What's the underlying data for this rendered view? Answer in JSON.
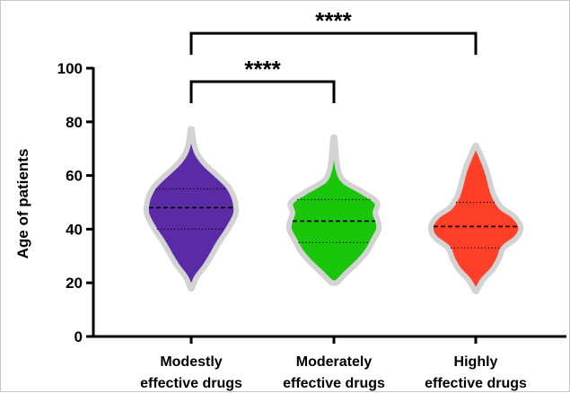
{
  "chart_data": {
    "type": "violin",
    "ylabel": "Age of patients",
    "ylim": [
      0,
      100
    ],
    "yticks": [
      0,
      20,
      40,
      60,
      80,
      100
    ],
    "categories": [
      [
        "Modestly",
        "effective drugs"
      ],
      [
        "Moderately",
        "effective drugs"
      ],
      [
        "Highly",
        "effective drugs"
      ]
    ],
    "series": [
      {
        "color": "#5b2aa6",
        "min": 18,
        "max": 77,
        "median": 48,
        "q1": 40,
        "q3": 55,
        "profile": [
          [
            18,
            0.02
          ],
          [
            22,
            0.12
          ],
          [
            26,
            0.3
          ],
          [
            30,
            0.45
          ],
          [
            35,
            0.62
          ],
          [
            40,
            0.82
          ],
          [
            45,
            0.98
          ],
          [
            48,
            1.0
          ],
          [
            52,
            0.95
          ],
          [
            56,
            0.82
          ],
          [
            60,
            0.58
          ],
          [
            64,
            0.32
          ],
          [
            68,
            0.14
          ],
          [
            72,
            0.06
          ],
          [
            77,
            0.02
          ]
        ]
      },
      {
        "color": "#19c60a",
        "min": 20,
        "max": 74,
        "median": 43,
        "q1": 35,
        "q3": 51,
        "profile": [
          [
            20,
            0.06
          ],
          [
            24,
            0.3
          ],
          [
            28,
            0.55
          ],
          [
            32,
            0.75
          ],
          [
            36,
            0.88
          ],
          [
            40,
            1.0
          ],
          [
            43,
            0.98
          ],
          [
            46,
            0.92
          ],
          [
            50,
            0.96
          ],
          [
            54,
            0.62
          ],
          [
            58,
            0.22
          ],
          [
            62,
            0.1
          ],
          [
            66,
            0.06
          ],
          [
            70,
            0.04
          ],
          [
            74,
            0.02
          ]
        ]
      },
      {
        "color": "#ff3f28",
        "min": 17,
        "max": 71,
        "median": 41,
        "q1": 33,
        "q3": 50,
        "profile": [
          [
            17,
            0.02
          ],
          [
            21,
            0.16
          ],
          [
            25,
            0.38
          ],
          [
            29,
            0.52
          ],
          [
            33,
            0.62
          ],
          [
            37,
            0.92
          ],
          [
            41,
            1.0
          ],
          [
            45,
            0.84
          ],
          [
            48,
            0.58
          ],
          [
            52,
            0.42
          ],
          [
            56,
            0.34
          ],
          [
            60,
            0.28
          ],
          [
            64,
            0.2
          ],
          [
            68,
            0.1
          ],
          [
            71,
            0.02
          ]
        ]
      }
    ],
    "significance": [
      {
        "from": 0,
        "to": 2,
        "label": "****",
        "y": 113
      },
      {
        "from": 0,
        "to": 1,
        "label": "****",
        "y": 95
      }
    ]
  }
}
